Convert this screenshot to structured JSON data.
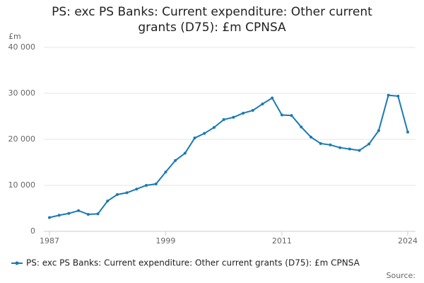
{
  "chart_data": {
    "type": "line",
    "title": "PS: exc PS Banks: Current expenditure: Other current grants (D75): £m CPNSA",
    "y_unit": "£m",
    "source": "Source:",
    "x": [
      1987,
      1988,
      1989,
      1990,
      1991,
      1992,
      1993,
      1994,
      1995,
      1996,
      1997,
      1998,
      1999,
      2000,
      2001,
      2002,
      2003,
      2004,
      2005,
      2006,
      2007,
      2008,
      2009,
      2010,
      2011,
      2012,
      2013,
      2014,
      2015,
      2016,
      2017,
      2018,
      2019,
      2020,
      2021,
      2022,
      2023,
      2024
    ],
    "series": [
      {
        "name": "PS: exc PS Banks: Current expenditure: Other current grants (D75): £m CPNSA",
        "color": "#1a7ab5",
        "values": [
          3000,
          3500,
          3900,
          4500,
          3700,
          3800,
          6600,
          8000,
          8400,
          9200,
          10000,
          10300,
          12900,
          15400,
          17000,
          20300,
          21300,
          22600,
          24300,
          24800,
          25700,
          26300,
          27700,
          29000,
          25300,
          25200,
          22700,
          20500,
          19100,
          18800,
          18200,
          17900,
          17600,
          19000,
          21900,
          29600,
          29400,
          21600
        ]
      }
    ],
    "xlim": [
      1987,
      2024
    ],
    "xticks": [
      1987,
      1999,
      2011,
      2024
    ],
    "ylim": [
      0,
      40000
    ],
    "yticks": [
      0,
      {
        "value": 10000,
        "label": "10 000"
      },
      {
        "value": 20000,
        "label": "20 000"
      },
      {
        "value": 30000,
        "label": "30 000"
      },
      {
        "value": 40000,
        "label": "40 000"
      }
    ],
    "grid": true
  }
}
